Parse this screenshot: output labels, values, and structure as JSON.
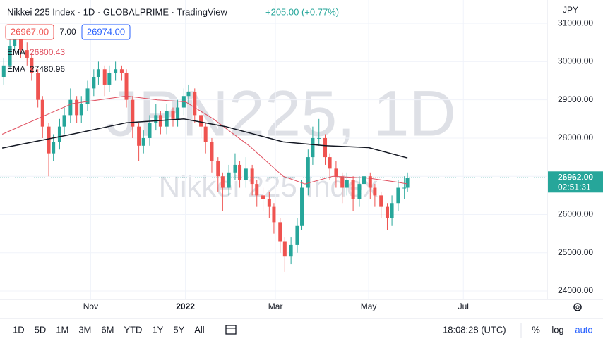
{
  "header": {
    "title": "Nikkei 225 Index · 1D · GLOBALPRIME · TradingView",
    "change": "+205.00 (+0.77%)",
    "bid": "26967.00",
    "spread": "7.00",
    "ask": "26974.00",
    "currency": "JPY"
  },
  "watermark": {
    "symbol": "JPN225, 1D",
    "name": "Nikkei 225 Index"
  },
  "price_tag": {
    "price": "26962.00",
    "countdown": "02:51:31"
  },
  "toolbar": {
    "ranges": [
      "1D",
      "5D",
      "1M",
      "3M",
      "6M",
      "YTD",
      "1Y",
      "5Y",
      "All"
    ],
    "clock": "18:08:28 (UTC)",
    "percent": "%",
    "log": "log",
    "auto": "auto"
  },
  "chart_data": {
    "type": "candlestick",
    "up_color": "#26a69a",
    "down_color": "#ef5350",
    "x": [
      1,
      5,
      8,
      12,
      16,
      19,
      23,
      26,
      30,
      33,
      37,
      40,
      44,
      48,
      51,
      55,
      59,
      62,
      66,
      69,
      73,
      77,
      80,
      84,
      88,
      91,
      95,
      99,
      102,
      106,
      110,
      113,
      117,
      120,
      124,
      128,
      131,
      135,
      139,
      142,
      146,
      150,
      153,
      157,
      161,
      164,
      168,
      172,
      175,
      179,
      182,
      186,
      190,
      193,
      197,
      200,
      204,
      208,
      211,
      215,
      219,
      222,
      226,
      230,
      233,
      237,
      240,
      244,
      248,
      251,
      255,
      259,
      261
    ],
    "open": [
      29600,
      29900,
      30400,
      30700,
      30300,
      30100,
      29700,
      29000,
      28300,
      27600,
      27900,
      28300,
      28600,
      29000,
      28600,
      28900,
      29300,
      29600,
      29800,
      29400,
      29700,
      29800,
      29700,
      29000,
      28300,
      27800,
      28000,
      28400,
      28600,
      28300,
      28700,
      28500,
      28800,
      29100,
      29200,
      28600,
      28300,
      27900,
      27400,
      27000,
      26700,
      27100,
      27300,
      26900,
      27200,
      26800,
      26500,
      26400,
      26200,
      25800,
      25300,
      24900,
      25200,
      25700,
      26700,
      27500,
      28000,
      28000,
      27500,
      27200,
      27000,
      26700,
      26900,
      26400,
      26800,
      27000,
      26700,
      26500,
      26200,
      25900,
      26300,
      26700,
      26700
    ],
    "high": [
      30100,
      30600,
      30900,
      30800,
      30500,
      30200,
      29800,
      29100,
      28400,
      28100,
      28500,
      28800,
      29300,
      29100,
      29100,
      29500,
      29800,
      30000,
      29900,
      29900,
      30000,
      29900,
      29800,
      29100,
      28400,
      28200,
      28600,
      28900,
      28700,
      28900,
      28800,
      29000,
      29300,
      29400,
      29300,
      28700,
      28400,
      28000,
      27500,
      27100,
      27300,
      27600,
      27400,
      27500,
      27300,
      26900,
      26700,
      26600,
      26300,
      25900,
      25400,
      25400,
      25900,
      26900,
      27700,
      28300,
      28500,
      28100,
      27600,
      27400,
      27100,
      27100,
      27000,
      27000,
      27300,
      27100,
      26800,
      26600,
      26300,
      26500,
      26900,
      27000,
      27100
    ],
    "low": [
      29400,
      29800,
      30300,
      30100,
      29900,
      29500,
      28800,
      28000,
      27000,
      27400,
      27700,
      28100,
      28400,
      28400,
      28400,
      28700,
      29100,
      29400,
      29100,
      29200,
      29500,
      29500,
      28800,
      28000,
      27400,
      27600,
      27800,
      28200,
      28100,
      28100,
      28300,
      28300,
      28600,
      28900,
      28400,
      28000,
      27600,
      27100,
      26600,
      26100,
      26500,
      26900,
      26700,
      26700,
      26500,
      26200,
      26100,
      25900,
      25500,
      25000,
      24500,
      24700,
      25000,
      25600,
      26500,
      27300,
      27800,
      27300,
      26900,
      26700,
      26300,
      26500,
      26100,
      26200,
      26600,
      26400,
      26200,
      25900,
      25600,
      25700,
      26100,
      26400,
      26600
    ],
    "close": [
      29900,
      30400,
      30700,
      30300,
      30100,
      29700,
      29000,
      28300,
      27600,
      27900,
      28300,
      28600,
      29000,
      28600,
      28900,
      29300,
      29600,
      29800,
      29400,
      29700,
      29800,
      29700,
      29000,
      28300,
      27800,
      28000,
      28400,
      28600,
      28300,
      28700,
      28500,
      28800,
      29100,
      29200,
      28600,
      28300,
      27900,
      27400,
      27000,
      26700,
      27100,
      27300,
      26900,
      27200,
      26800,
      26500,
      26400,
      26200,
      25800,
      25300,
      24900,
      25200,
      25700,
      26700,
      27500,
      28000,
      28000,
      27500,
      27200,
      27000,
      26700,
      26900,
      26400,
      26800,
      27000,
      26700,
      26500,
      26200,
      25900,
      26300,
      26700,
      26700,
      26962
    ],
    "series": [
      {
        "name": "EMA",
        "color": "#e04f5f",
        "last": 26800.43,
        "x": [
          0,
          45,
          80,
          100,
          118,
          136,
          159,
          181,
          195,
          213,
          236,
          254,
          261
        ],
        "values": [
          28100,
          28900,
          29100,
          29000,
          28950,
          28500,
          27800,
          27000,
          26800,
          27000,
          26950,
          26850,
          26800
        ]
      },
      {
        "name": "EMA",
        "color": "#131722",
        "last": 27480.96,
        "x": [
          0,
          45,
          80,
          117,
          144,
          181,
          208,
          236,
          261
        ],
        "values": [
          27740,
          28100,
          28400,
          28500,
          28300,
          27900,
          27800,
          27750,
          27480
        ]
      }
    ],
    "xlim": [
      -1.4,
      351
    ],
    "ylim": [
      23780,
      31610
    ],
    "xticks": [
      {
        "value": 57,
        "label": "Nov"
      },
      {
        "value": 118,
        "label": "2022"
      },
      {
        "value": 176,
        "label": "Mar"
      },
      {
        "value": 236,
        "label": "May"
      },
      {
        "value": 297,
        "label": "Jul"
      }
    ],
    "yticks": [
      {
        "value": 24000,
        "label": "24000.00"
      },
      {
        "value": 25000,
        "label": "25000.00"
      },
      {
        "value": 26000,
        "label": "26000.00"
      },
      {
        "value": 27000,
        "label": "27000.00"
      },
      {
        "value": 28000,
        "label": "28000.00"
      },
      {
        "value": 29000,
        "label": "29000.00"
      },
      {
        "value": 30000,
        "label": "30000.00"
      },
      {
        "value": 31000,
        "label": "31000.00"
      }
    ],
    "last_price": 26962
  }
}
